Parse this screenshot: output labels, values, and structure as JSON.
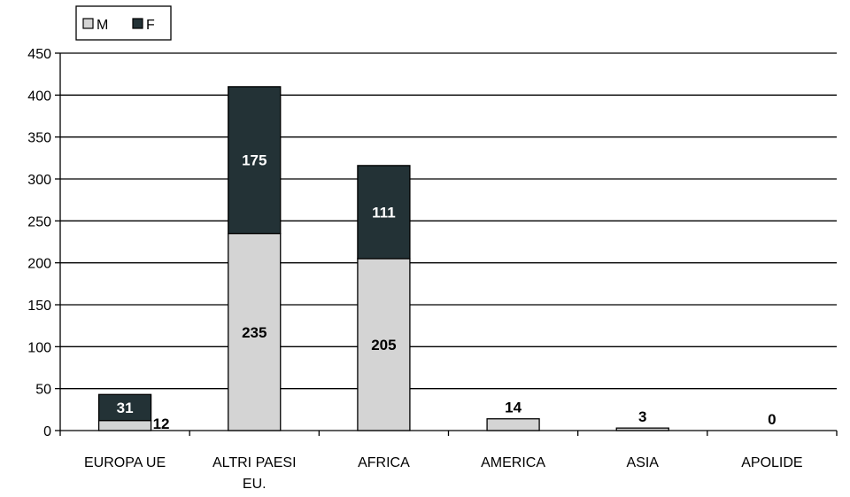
{
  "chart_data": {
    "type": "bar",
    "stacked": true,
    "categories": [
      [
        "EUROPA UE"
      ],
      [
        "ALTRI PAESI",
        "EU."
      ],
      [
        "AFRICA"
      ],
      [
        "AMERICA"
      ],
      [
        "ASIA"
      ],
      [
        "APOLIDE"
      ]
    ],
    "series": [
      {
        "name": "M",
        "color": "#d4d4d4",
        "values": [
          12,
          235,
          205,
          14,
          3,
          0
        ]
      },
      {
        "name": "F",
        "color": "#233236",
        "values": [
          31,
          175,
          111,
          0,
          0,
          0
        ]
      }
    ],
    "data_labels": [
      {
        "category": 0,
        "series": "F",
        "text": "31"
      },
      {
        "category": 0,
        "series": "M",
        "text": "12",
        "position": "outside-right"
      },
      {
        "category": 1,
        "series": "F",
        "text": "175"
      },
      {
        "category": 1,
        "series": "M",
        "text": "235"
      },
      {
        "category": 2,
        "series": "F",
        "text": "111"
      },
      {
        "category": 2,
        "series": "M",
        "text": "205"
      },
      {
        "category": 3,
        "series": "M",
        "text": "14",
        "position": "above"
      },
      {
        "category": 4,
        "series": "M",
        "text": "3",
        "position": "above"
      },
      {
        "category": 5,
        "series": "M",
        "text": "0",
        "position": "above"
      }
    ],
    "ylim": [
      0,
      450
    ],
    "yticks": [
      0,
      50,
      100,
      150,
      200,
      250,
      300,
      350,
      400,
      450
    ],
    "grid": true,
    "legend": {
      "position": "top-left",
      "entries": [
        "M",
        "F"
      ]
    },
    "title": "",
    "xlabel": "",
    "ylabel": ""
  }
}
